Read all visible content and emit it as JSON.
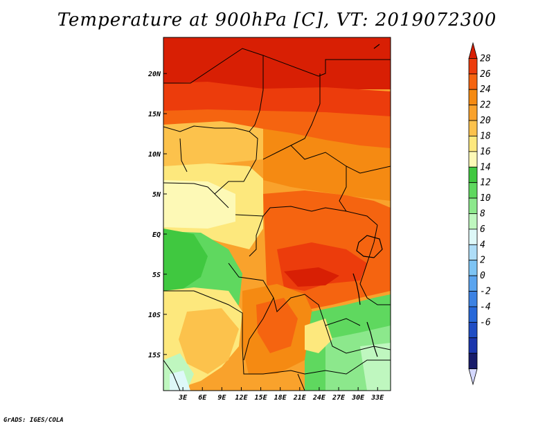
{
  "title": "Temperature at 900hPa [C], VT: 2019072300",
  "credit": "GrADS: IGES/COLA",
  "map": {
    "lat_labels": [
      "20N",
      "15N",
      "10N",
      "5N",
      "EQ",
      "5S",
      "10S",
      "15S"
    ],
    "lon_labels": [
      "3E",
      "6E",
      "9E",
      "12E",
      "15E",
      "18E",
      "21E",
      "24E",
      "27E",
      "30E",
      "33E"
    ],
    "lat_values": [
      20,
      15,
      10,
      5,
      0,
      -5,
      -10,
      -15
    ],
    "lon_values": [
      3,
      6,
      9,
      12,
      15,
      18,
      21,
      24,
      27,
      30,
      33
    ],
    "lat_range": [
      -19.5,
      24.5
    ],
    "lon_range": [
      0,
      35
    ]
  },
  "colorbar": {
    "labels": [
      "28",
      "26",
      "24",
      "22",
      "20",
      "18",
      "16",
      "14",
      "12",
      "10",
      "8",
      "6",
      "4",
      "2",
      "0",
      "-2",
      "-4",
      "-6"
    ],
    "colors": [
      "#d81f04",
      "#ec3c0c",
      "#f56410",
      "#f58a12",
      "#f9a22c",
      "#fcc24c",
      "#fde87d",
      "#fdf9b6",
      "#40c840",
      "#5fd85f",
      "#8ce88c",
      "#bff7bf",
      "#def8f8",
      "#aeddf7",
      "#7dc4f4",
      "#5aa4ee",
      "#3c82e3",
      "#2768d9",
      "#1f4dc4",
      "#1b36ad",
      "#181c6a",
      "#d4d8ff"
    ]
  }
}
